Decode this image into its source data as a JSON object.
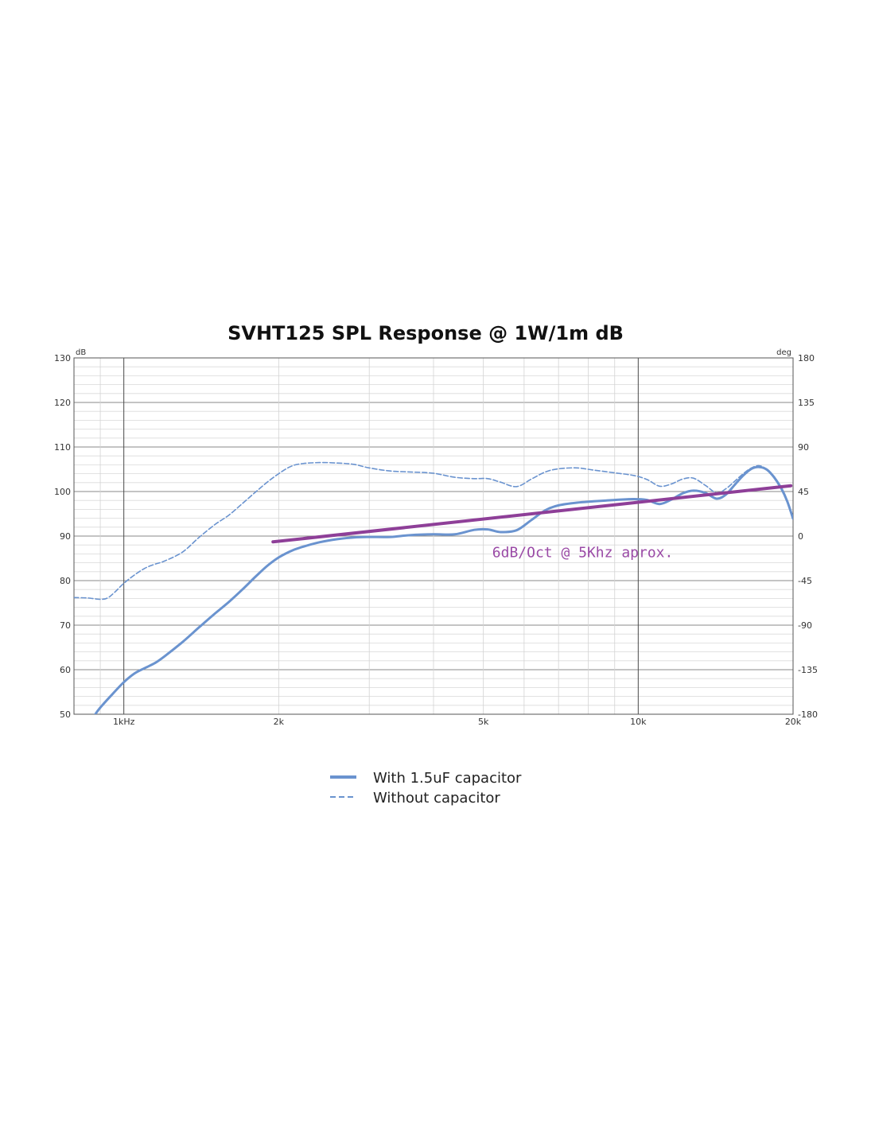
{
  "chart_data": {
    "type": "line",
    "title": "SVHT125 SPL Response @ 1W/1m dB",
    "y_unit": "dB",
    "y2_unit": "deg",
    "x_scale": "log",
    "xlim": [
      800,
      20000
    ],
    "ylim": [
      50,
      130
    ],
    "y2lim": [
      -180,
      180
    ],
    "x_ticks": [
      {
        "value": 1000,
        "label": "1kHz"
      },
      {
        "value": 2000,
        "label": "2k"
      },
      {
        "value": 5000,
        "label": "5k"
      },
      {
        "value": 10000,
        "label": "10k"
      },
      {
        "value": 20000,
        "label": "20k"
      }
    ],
    "y_ticks": [
      {
        "value": 50,
        "label": "50"
      },
      {
        "value": 60,
        "label": "60"
      },
      {
        "value": 70,
        "label": "70"
      },
      {
        "value": 80,
        "label": "80"
      },
      {
        "value": 90,
        "label": "90"
      },
      {
        "value": 100,
        "label": "100"
      },
      {
        "value": 110,
        "label": "110"
      },
      {
        "value": 120,
        "label": "120"
      },
      {
        "value": 130,
        "label": "130"
      }
    ],
    "y2_ticks": [
      {
        "value": 180,
        "label": "180"
      },
      {
        "value": 135,
        "label": "135"
      },
      {
        "value": 90,
        "label": "90"
      },
      {
        "value": 45,
        "label": "45"
      },
      {
        "value": 0,
        "label": "0"
      },
      {
        "value": -45,
        "label": "-45"
      },
      {
        "value": -90,
        "label": "-90"
      },
      {
        "value": -135,
        "label": "-135"
      },
      {
        "value": -180,
        "label": "-180"
      }
    ],
    "grid": true,
    "series": [
      {
        "name": "With 1.5uF capacitor",
        "style": "solid",
        "color": "#6a93cf",
        "points": [
          [
            880,
            50
          ],
          [
            900,
            51.5
          ],
          [
            950,
            54.5
          ],
          [
            1000,
            57.2
          ],
          [
            1050,
            59.2
          ],
          [
            1100,
            60.4
          ],
          [
            1150,
            61.5
          ],
          [
            1200,
            63
          ],
          [
            1300,
            66.2
          ],
          [
            1400,
            69.5
          ],
          [
            1500,
            72.5
          ],
          [
            1600,
            75.2
          ],
          [
            1700,
            78
          ],
          [
            1800,
            80.8
          ],
          [
            1900,
            83.3
          ],
          [
            2000,
            85.2
          ],
          [
            2100,
            86.5
          ],
          [
            2200,
            87.4
          ],
          [
            2400,
            88.6
          ],
          [
            2600,
            89.3
          ],
          [
            2800,
            89.7
          ],
          [
            3000,
            89.8
          ],
          [
            3300,
            89.8
          ],
          [
            3600,
            90.2
          ],
          [
            4000,
            90.4
          ],
          [
            4400,
            90.4
          ],
          [
            4800,
            91.4
          ],
          [
            5100,
            91.5
          ],
          [
            5400,
            90.9
          ],
          [
            5800,
            91.3
          ],
          [
            6200,
            93.6
          ],
          [
            6600,
            95.8
          ],
          [
            7000,
            96.9
          ],
          [
            7600,
            97.5
          ],
          [
            8200,
            97.8
          ],
          [
            9000,
            98.1
          ],
          [
            9800,
            98.3
          ],
          [
            10400,
            98.1
          ],
          [
            11000,
            97.2
          ],
          [
            11600,
            98.2
          ],
          [
            12200,
            99.6
          ],
          [
            12800,
            100.2
          ],
          [
            13500,
            99.7
          ],
          [
            14200,
            98.4
          ],
          [
            14800,
            99.3
          ],
          [
            15400,
            101.5
          ],
          [
            16000,
            103.6
          ],
          [
            16600,
            105.1
          ],
          [
            17200,
            105.5
          ],
          [
            17800,
            104.9
          ],
          [
            18400,
            103.1
          ],
          [
            19000,
            100.6
          ],
          [
            19500,
            97.7
          ],
          [
            20000,
            93.9
          ]
        ]
      },
      {
        "name": "Without capacitor",
        "style": "dashed",
        "color": "#6a93cf",
        "points": [
          [
            800,
            76.2
          ],
          [
            850,
            76.1
          ],
          [
            900,
            75.8
          ],
          [
            930,
            76.1
          ],
          [
            960,
            77.4
          ],
          [
            1000,
            79.4
          ],
          [
            1050,
            81.3
          ],
          [
            1100,
            82.8
          ],
          [
            1150,
            83.7
          ],
          [
            1200,
            84.4
          ],
          [
            1300,
            86.4
          ],
          [
            1400,
            89.7
          ],
          [
            1500,
            92.5
          ],
          [
            1600,
            94.7
          ],
          [
            1700,
            97.3
          ],
          [
            1800,
            99.8
          ],
          [
            1900,
            102.1
          ],
          [
            2000,
            104
          ],
          [
            2100,
            105.5
          ],
          [
            2200,
            106.2
          ],
          [
            2400,
            106.5
          ],
          [
            2600,
            106.4
          ],
          [
            2800,
            106.1
          ],
          [
            3000,
            105.3
          ],
          [
            3300,
            104.6
          ],
          [
            3600,
            104.4
          ],
          [
            4000,
            104.1
          ],
          [
            4400,
            103.2
          ],
          [
            4800,
            102.9
          ],
          [
            5100,
            102.9
          ],
          [
            5400,
            102.1
          ],
          [
            5800,
            101.1
          ],
          [
            6200,
            102.8
          ],
          [
            6600,
            104.4
          ],
          [
            7000,
            105.1
          ],
          [
            7600,
            105.3
          ],
          [
            8200,
            104.8
          ],
          [
            9000,
            104.2
          ],
          [
            9800,
            103.6
          ],
          [
            10400,
            102.7
          ],
          [
            11000,
            101.2
          ],
          [
            11600,
            101.7
          ],
          [
            12200,
            102.8
          ],
          [
            12800,
            103
          ],
          [
            13500,
            101.4
          ],
          [
            14200,
            99.7
          ],
          [
            14800,
            100.6
          ],
          [
            15400,
            102.3
          ],
          [
            16000,
            104
          ],
          [
            16600,
            105.3
          ],
          [
            17200,
            105.8
          ],
          [
            17800,
            104.9
          ],
          [
            18400,
            102.9
          ],
          [
            19000,
            100.3
          ],
          [
            19500,
            97.5
          ],
          [
            20000,
            94.4
          ]
        ]
      }
    ],
    "trend_line": {
      "color": "#8e3f98",
      "points": [
        [
          1950,
          88.7
        ],
        [
          19800,
          101.3
        ]
      ]
    },
    "annotation": {
      "text": "6dB/Oct @ 5Khz aprox.",
      "x": 7800,
      "y": 85.3,
      "color": "#9a4aa6"
    },
    "legend_position": "bottom-center"
  }
}
